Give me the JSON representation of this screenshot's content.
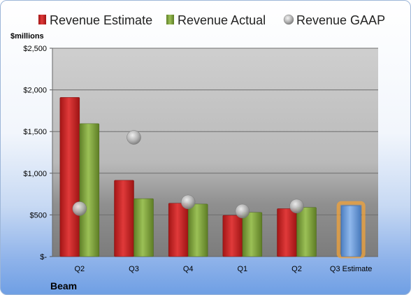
{
  "chart_data": {
    "type": "bar",
    "unit_label": "$millions",
    "footer_label": "Beam",
    "categories": [
      "Q2",
      "Q3",
      "Q4",
      "Q1",
      "Q2",
      "Q3 Estimate"
    ],
    "series": [
      {
        "name": "Revenue Estimate",
        "mark": "bar",
        "color": "#cc2222",
        "values": [
          1910,
          915,
          640,
          495,
          575,
          null
        ]
      },
      {
        "name": "Revenue Actual",
        "mark": "bar",
        "color": "#7fa23a",
        "values": [
          1595,
          695,
          630,
          530,
          590,
          null
        ]
      },
      {
        "name": "Revenue GAAP",
        "mark": "circle",
        "color": "#a8a8a8",
        "values": [
          575,
          1430,
          655,
          545,
          605,
          null
        ]
      },
      {
        "name": "Q3 Estimate",
        "mark": "bar",
        "color": "#6b9bd8",
        "highlight": "#f2a33a",
        "values": [
          null,
          null,
          null,
          null,
          null,
          610
        ]
      }
    ],
    "y_ticks": [
      {
        "value": 0,
        "label": "$-"
      },
      {
        "value": 500,
        "label": "$500"
      },
      {
        "value": 1000,
        "label": "$1,000"
      },
      {
        "value": 1500,
        "label": "$1,500"
      },
      {
        "value": 2000,
        "label": "$2,000"
      },
      {
        "value": 2500,
        "label": "$2,500"
      }
    ],
    "ylim": [
      0,
      2500
    ],
    "grid": true,
    "legend_position": "top"
  }
}
